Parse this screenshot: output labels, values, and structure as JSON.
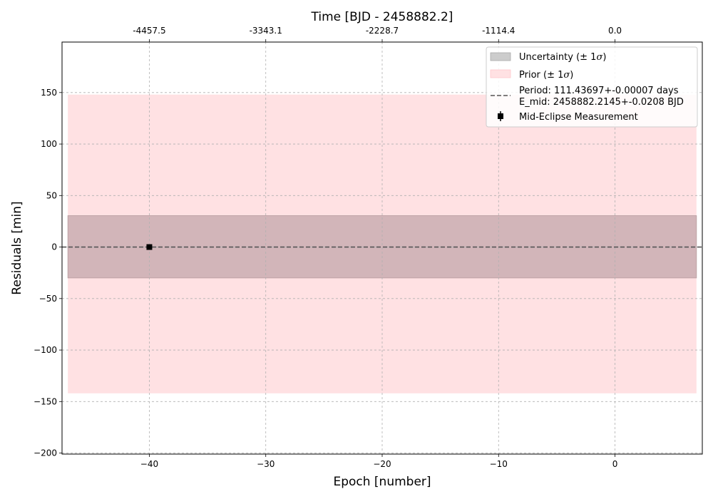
{
  "chart_data": {
    "type": "scatter",
    "title": "",
    "xlabel": "Epoch [number]",
    "ylabel": "Residuals [min]",
    "top_xlabel": "Time [BJD - 2458882.2]",
    "xlim": [
      -47.5,
      7.5
    ],
    "ylim": [
      -201,
      199
    ],
    "x_ticks": [
      -40,
      -30,
      -20,
      -10,
      0
    ],
    "x_tick_labels": [
      "−40",
      "−30",
      "−20",
      "−10",
      "0"
    ],
    "y_ticks": [
      150,
      100,
      50,
      0,
      -50,
      -100,
      -150,
      -200
    ],
    "y_tick_labels": [
      "150",
      "100",
      "50",
      "0",
      "−50",
      "−100",
      "−150",
      "−200"
    ],
    "top_ticks": [
      -40,
      -30,
      -20,
      -10,
      0
    ],
    "top_tick_labels": [
      "-4457.5",
      "-3343.1",
      "-2228.7",
      "-1114.4",
      "0.0"
    ],
    "grid": true,
    "legend_position": "top-right",
    "bands": [
      {
        "name": "Prior (± 1σ)",
        "x_range": [
          -47,
          7
        ],
        "y_range": [
          -142,
          148
        ],
        "color": "#ffe1e3"
      },
      {
        "name": "Uncertainty (± 1σ)",
        "x_range": [
          -47,
          7
        ],
        "y_range": [
          -30,
          30.5
        ],
        "color": "#d2b5b9"
      }
    ],
    "lines": [
      {
        "name": "Period: 111.43697+-0.00007 days",
        "name_line2": "E_mid: 2458882.2145+-0.0208 BJD",
        "y": 0,
        "style": "dashed",
        "color": "#555555"
      }
    ],
    "series": [
      {
        "name": "Mid-Eclipse Measurement",
        "x": [
          -40
        ],
        "y": [
          0
        ],
        "marker": "square",
        "color": "#000000"
      }
    ],
    "legend_entries": [
      {
        "label": "Uncertainty (± 1",
        "sigma": "σ",
        "close": ")"
      },
      {
        "label": "Prior (± 1",
        "sigma": "σ",
        "close": ")"
      },
      {
        "label": "Period: 111.43697+-0.00007 days",
        "label2": "E_mid: 2458882.2145+-0.0208 BJD"
      },
      {
        "label": "Mid-Eclipse Measurement"
      }
    ],
    "colors": {
      "prior_band": "#ffe1e3",
      "uncertainty_band": "#d2b5b9",
      "uncertainty_legend": "#cccccc",
      "model_line": "#555555",
      "grid": "#b0b0b0",
      "marker": "#000000"
    }
  }
}
